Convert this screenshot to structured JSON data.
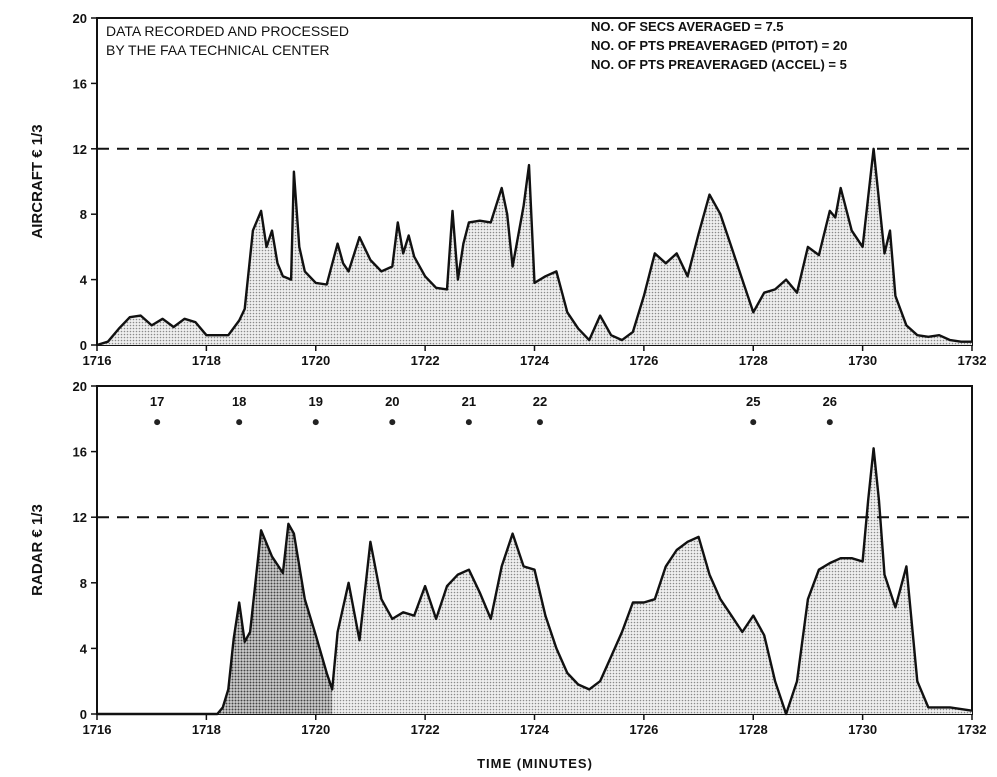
{
  "chart_data": [
    {
      "type": "area",
      "ylabel": "AIRCRAFT € 1/3",
      "ylim": [
        0,
        20
      ],
      "yticks": [
        0,
        4,
        8,
        12,
        16,
        20
      ],
      "xlim": [
        1716,
        1732
      ],
      "xticks": [
        1716,
        1718,
        1720,
        1722,
        1724,
        1726,
        1728,
        1730,
        1732
      ],
      "threshold": 12,
      "annotations": {
        "left": [
          "DATA RECORDED AND PROCESSED",
          "BY THE FAA TECHNICAL CENTER"
        ],
        "right": [
          "NO. OF SECS AVERAGED = 7.5",
          "NO. OF PTS PREAVERAGED (PITOT) = 20",
          "NO. OF PTS PREAVERAGED (ACCEL) = 5"
        ]
      },
      "series": [
        {
          "x": [
            1716.0,
            1716.2,
            1716.4,
            1716.6,
            1716.8,
            1717.0,
            1717.2,
            1717.4,
            1717.6,
            1717.8,
            1718.0,
            1718.2,
            1718.4,
            1718.6,
            1718.7,
            1718.85,
            1719.0,
            1719.1,
            1719.2,
            1719.3,
            1719.4,
            1719.55,
            1719.6,
            1719.7,
            1719.8,
            1720.0,
            1720.2,
            1720.4,
            1720.5,
            1720.6,
            1720.8,
            1721.0,
            1721.2,
            1721.4,
            1721.5,
            1721.6,
            1721.7,
            1721.8,
            1722.0,
            1722.2,
            1722.4,
            1722.5,
            1722.6,
            1722.7,
            1722.8,
            1723.0,
            1723.2,
            1723.4,
            1723.5,
            1723.6,
            1723.8,
            1723.9,
            1724.0,
            1724.2,
            1724.4,
            1724.6,
            1724.8,
            1725.0,
            1725.2,
            1725.4,
            1725.6,
            1725.8,
            1726.0,
            1726.2,
            1726.4,
            1726.6,
            1726.8,
            1727.0,
            1727.2,
            1727.4,
            1727.6,
            1727.8,
            1728.0,
            1728.2,
            1728.4,
            1728.6,
            1728.8,
            1729.0,
            1729.2,
            1729.4,
            1729.5,
            1729.6,
            1729.8,
            1730.0,
            1730.2,
            1730.4,
            1730.5,
            1730.6,
            1730.8,
            1731.0,
            1731.2,
            1731.4,
            1731.6,
            1731.8,
            1732.0
          ],
          "y": [
            0.0,
            0.2,
            1.0,
            1.7,
            1.8,
            1.2,
            1.6,
            1.1,
            1.6,
            1.4,
            0.6,
            0.6,
            0.6,
            1.5,
            2.2,
            7.0,
            8.2,
            6.0,
            7.0,
            5.0,
            4.2,
            4.0,
            10.6,
            6.0,
            4.5,
            3.8,
            3.7,
            6.2,
            5.0,
            4.5,
            6.6,
            5.2,
            4.5,
            4.8,
            7.5,
            5.6,
            6.7,
            5.4,
            4.2,
            3.5,
            3.4,
            8.2,
            4.0,
            6.2,
            7.5,
            7.6,
            7.5,
            9.6,
            8.0,
            4.8,
            8.5,
            11.0,
            3.8,
            4.2,
            4.5,
            2.0,
            1.0,
            0.3,
            1.8,
            0.6,
            0.3,
            0.8,
            3.0,
            5.6,
            5.0,
            5.6,
            4.2,
            6.8,
            9.2,
            8.0,
            6.0,
            4.0,
            2.0,
            3.2,
            3.4,
            4.0,
            3.2,
            6.0,
            5.5,
            8.2,
            7.8,
            9.6,
            7.0,
            6.0,
            12.0,
            5.6,
            7.0,
            3.0,
            1.2,
            0.6,
            0.5,
            0.6,
            0.3,
            0.2,
            0.2
          ]
        }
      ]
    },
    {
      "type": "area",
      "ylabel": "RADAR € 1/3",
      "xlabel": "TIME (MINUTES)",
      "ylim": [
        0,
        20
      ],
      "yticks": [
        0,
        4,
        8,
        12,
        16,
        20
      ],
      "xlim": [
        1716,
        1732
      ],
      "xticks": [
        1716,
        1718,
        1720,
        1722,
        1724,
        1726,
        1728,
        1730,
        1732
      ],
      "threshold": 12,
      "markers": [
        {
          "label": "17",
          "x": 1717.1,
          "y": 17.8
        },
        {
          "label": "18",
          "x": 1718.6,
          "y": 17.8
        },
        {
          "label": "19",
          "x": 1720.0,
          "y": 17.8
        },
        {
          "label": "20",
          "x": 1721.4,
          "y": 17.8
        },
        {
          "label": "21",
          "x": 1722.8,
          "y": 17.8
        },
        {
          "label": "22",
          "x": 1724.1,
          "y": 17.8
        },
        {
          "label": "25",
          "x": 1728.0,
          "y": 17.8
        },
        {
          "label": "26",
          "x": 1729.4,
          "y": 17.8
        }
      ],
      "series": [
        {
          "x": [
            1716.0,
            1718.0,
            1718.2,
            1718.3,
            1718.4,
            1718.5,
            1718.6,
            1718.7,
            1718.8,
            1719.0,
            1719.2,
            1719.4,
            1719.5,
            1719.6,
            1719.8,
            1720.0,
            1720.2,
            1720.3,
            1720.4,
            1720.6,
            1720.8,
            1721.0,
            1721.2,
            1721.4,
            1721.6,
            1721.8,
            1722.0,
            1722.2,
            1722.4,
            1722.6,
            1722.8,
            1723.0,
            1723.2,
            1723.4,
            1723.6,
            1723.8,
            1724.0,
            1724.2,
            1724.4,
            1724.6,
            1724.8,
            1725.0,
            1725.2,
            1725.4,
            1725.6,
            1725.8,
            1726.0,
            1726.2,
            1726.4,
            1726.6,
            1726.8,
            1727.0,
            1727.2,
            1727.4,
            1727.6,
            1727.8,
            1728.0,
            1728.2,
            1728.4,
            1728.6,
            1728.8,
            1729.0,
            1729.2,
            1729.4,
            1729.6,
            1729.8,
            1730.0,
            1730.1,
            1730.2,
            1730.3,
            1730.4,
            1730.6,
            1730.8,
            1731.0,
            1731.2,
            1731.6,
            1732.0
          ],
          "y": [
            0.0,
            0.0,
            0.0,
            0.4,
            1.5,
            4.6,
            6.8,
            4.4,
            5.0,
            11.2,
            9.6,
            8.6,
            11.6,
            11.0,
            7.0,
            4.8,
            2.5,
            1.5,
            5.0,
            8.0,
            4.5,
            10.5,
            7.0,
            5.8,
            6.2,
            6.0,
            7.8,
            5.8,
            7.8,
            8.5,
            8.8,
            7.4,
            5.8,
            9.0,
            11.0,
            9.0,
            8.8,
            6.0,
            4.0,
            2.5,
            1.8,
            1.5,
            2.0,
            3.5,
            5.0,
            6.8,
            6.8,
            7.0,
            9.0,
            10.0,
            10.5,
            10.8,
            8.5,
            7.0,
            6.0,
            5.0,
            6.0,
            4.8,
            2.0,
            0.0,
            2.0,
            7.0,
            8.8,
            9.2,
            9.5,
            9.5,
            9.3,
            13.0,
            16.2,
            13.0,
            8.5,
            6.5,
            9.0,
            2.0,
            0.4,
            0.4,
            0.2
          ]
        }
      ]
    }
  ]
}
